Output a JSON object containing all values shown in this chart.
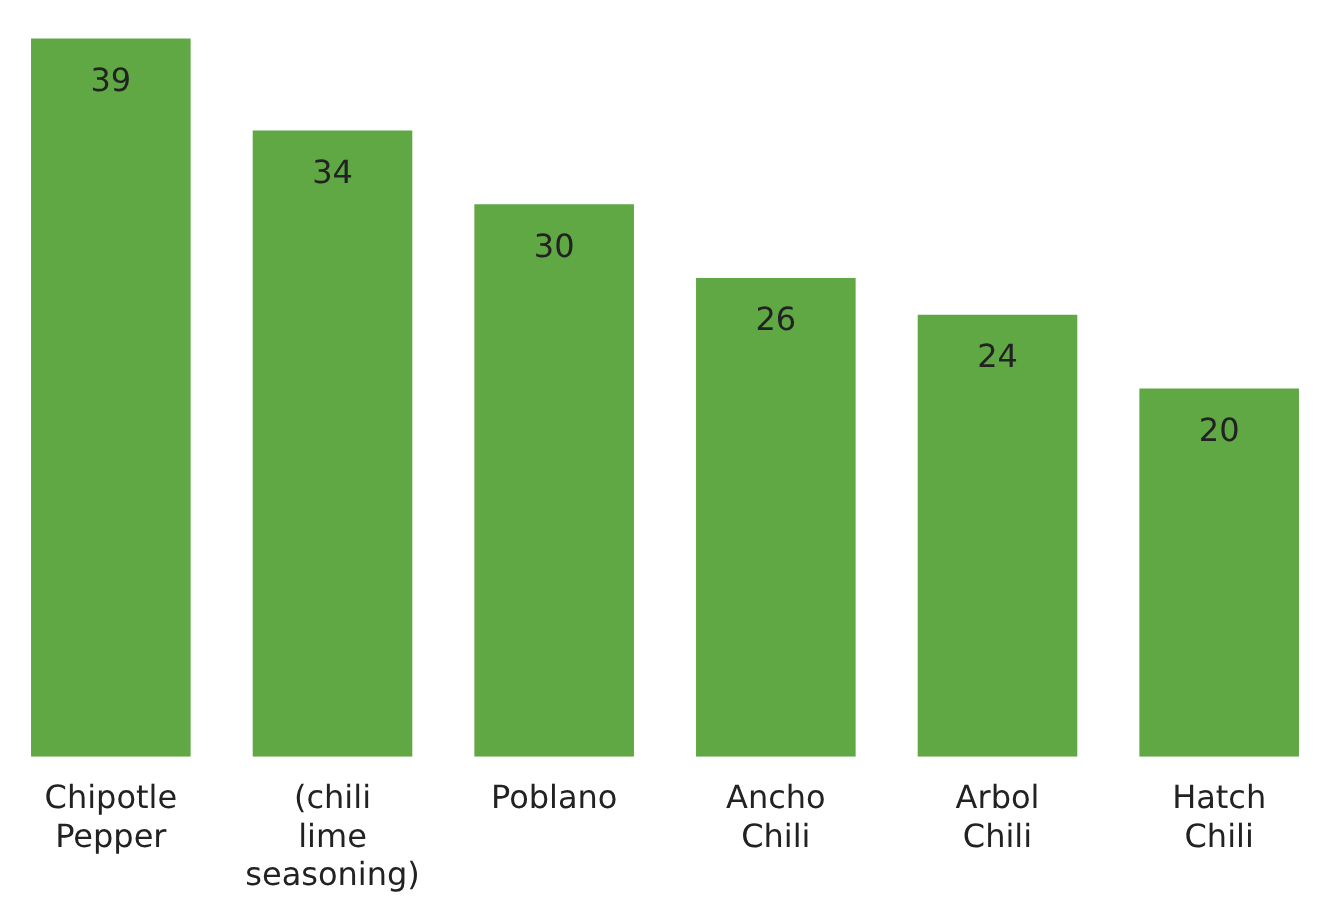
{
  "chart_data": {
    "type": "bar",
    "categories": [
      "Chipotle Pepper",
      "(chili lime seasoning)",
      "Poblano",
      "Ancho Chili",
      "Arbol Chili",
      "Hatch Chili"
    ],
    "values": [
      39,
      34,
      30,
      26,
      24,
      20
    ],
    "color": "#60a844",
    "data_labels": true,
    "grid": false,
    "legend": false
  }
}
